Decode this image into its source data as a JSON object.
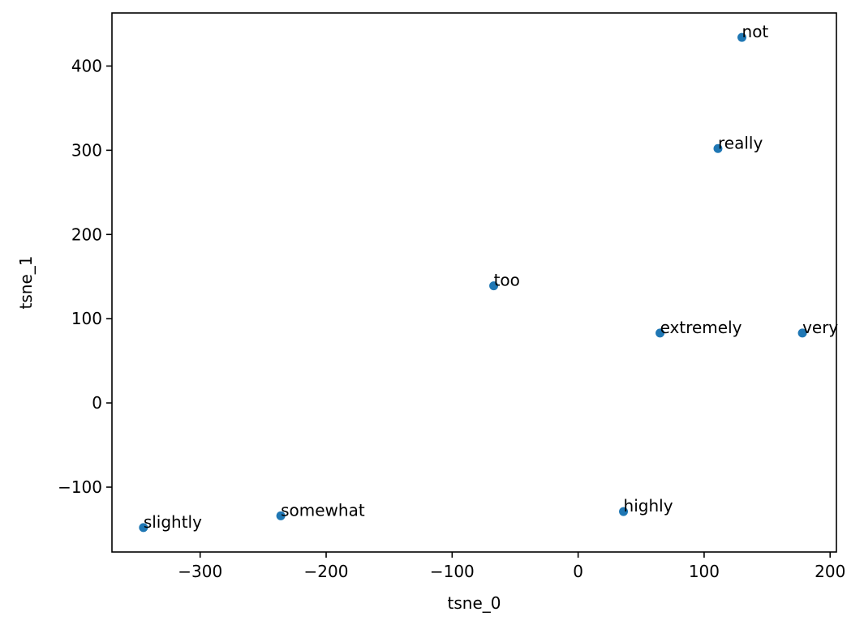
{
  "chart_data": {
    "type": "scatter",
    "title": "",
    "xlabel": "tsne_0",
    "ylabel": "tsne_1",
    "xlim": [
      -370,
      205
    ],
    "ylim": [
      -177,
      463
    ],
    "xticks": [
      -300,
      -200,
      -100,
      0,
      100,
      200
    ],
    "yticks": [
      -100,
      0,
      100,
      200,
      300,
      400
    ],
    "grid": false,
    "legend": null,
    "marker_color": "#1f77b4",
    "points": [
      {
        "label": "not",
        "x": 130,
        "y": 434
      },
      {
        "label": "really",
        "x": 111,
        "y": 302
      },
      {
        "label": "too",
        "x": -67,
        "y": 139
      },
      {
        "label": "extremely",
        "x": 65,
        "y": 83
      },
      {
        "label": "very",
        "x": 178,
        "y": 83
      },
      {
        "label": "highly",
        "x": 36,
        "y": -129
      },
      {
        "label": "somewhat",
        "x": -236,
        "y": -134
      },
      {
        "label": "slightly",
        "x": -345,
        "y": -148
      }
    ]
  }
}
